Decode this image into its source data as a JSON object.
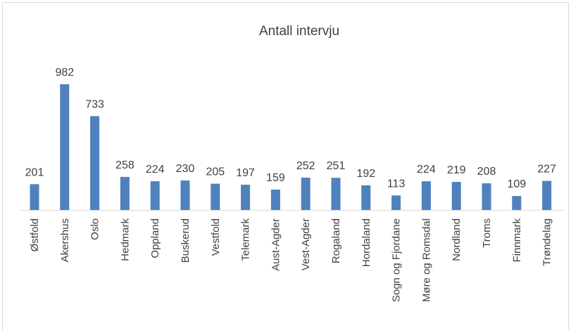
{
  "chart_data": {
    "type": "bar",
    "title": "Antall intervju",
    "categories": [
      "Østfold",
      "Akershus",
      "Oslo",
      "Hedmark",
      "Oppland",
      "Buskerud",
      "Vestfold",
      "Telemark",
      "Aust-Agder",
      "Vest-Agder",
      "Rogaland",
      "Hordaland",
      "Sogn og Fjordane",
      "Møre og Romsdal",
      "Nordland",
      "Troms",
      "Finnmark",
      "Trøndelag"
    ],
    "values": [
      201,
      982,
      733,
      258,
      224,
      230,
      205,
      197,
      159,
      252,
      251,
      192,
      113,
      224,
      219,
      208,
      109,
      227
    ],
    "color": "#4f81bd"
  }
}
